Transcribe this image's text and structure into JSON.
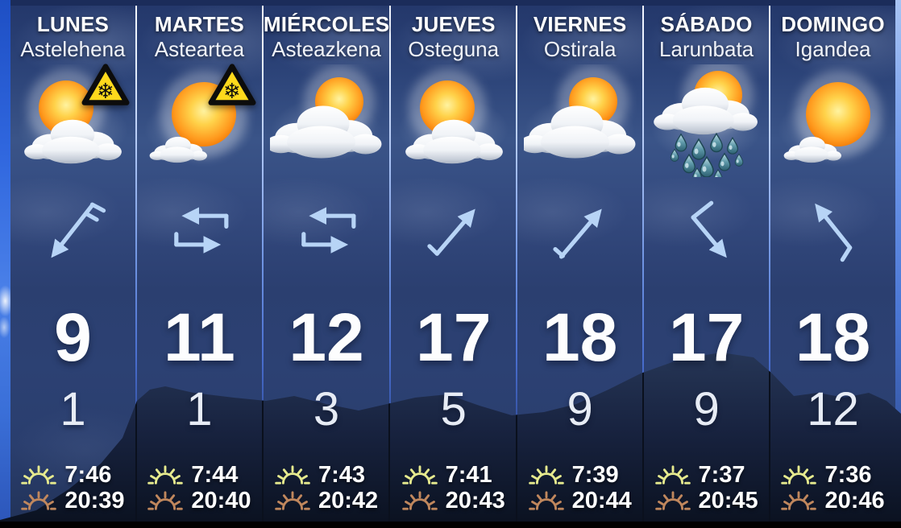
{
  "board": {
    "type_label": "7-day weather forecast",
    "languages": "Spanish / Basque"
  },
  "days": [
    {
      "day_name": "LUNES",
      "day_name_basque": "Astelehena",
      "weather_icon": "sun-behind-cloud",
      "snow_warning": true,
      "wind_icon": "wind-arrow-sw-barb",
      "temp_high": "9",
      "temp_low": "1",
      "sunrise": "7:46",
      "sunset": "20:39"
    },
    {
      "day_name": "MARTES",
      "day_name_basque": "Asteartea",
      "weather_icon": "sun-small-cloud",
      "snow_warning": true,
      "wind_icon": "wind-variable-loop",
      "temp_high": "11",
      "temp_low": "1",
      "sunrise": "7:44",
      "sunset": "20:40"
    },
    {
      "day_name": "MIÉRCOLES",
      "day_name_basque": "Asteazkena",
      "weather_icon": "cloud-sun-peek",
      "snow_warning": false,
      "wind_icon": "wind-variable-loop",
      "temp_high": "12",
      "temp_low": "3",
      "sunrise": "7:43",
      "sunset": "20:42"
    },
    {
      "day_name": "JUEVES",
      "day_name_basque": "Osteguna",
      "weather_icon": "sun-behind-cloud",
      "snow_warning": false,
      "wind_icon": "wind-arrow-ne-hook",
      "temp_high": "17",
      "temp_low": "5",
      "sunrise": "7:41",
      "sunset": "20:43"
    },
    {
      "day_name": "VIERNES",
      "day_name_basque": "Ostirala",
      "weather_icon": "cloud-sun-peek",
      "snow_warning": false,
      "wind_icon": "wind-arrow-ne-barb",
      "temp_high": "18",
      "temp_low": "9",
      "sunrise": "7:39",
      "sunset": "20:44"
    },
    {
      "day_name": "SÁBADO",
      "day_name_basque": "Larunbata",
      "weather_icon": "rain-cloud-sun",
      "snow_warning": false,
      "wind_icon": "wind-arrow-se-tail",
      "temp_high": "17",
      "temp_low": "9",
      "sunrise": "7:37",
      "sunset": "20:45"
    },
    {
      "day_name": "DOMINGO",
      "day_name_basque": "Igandea",
      "weather_icon": "sun-small-cloud",
      "snow_warning": false,
      "wind_icon": "wind-arrow-nw-tail",
      "temp_high": "18",
      "temp_low": "12",
      "sunrise": "7:36",
      "sunset": "20:46"
    }
  ],
  "colors": {
    "arrow_blue": "#b7d4f6",
    "panel_navy": "#2b3f70",
    "sky_blue": "#3a6fd8",
    "warning_yellow": "#ffd91c",
    "sunrise_icon": "#e6ea8e",
    "sunset_icon": "#c0875d",
    "temp_text": "#ffffff",
    "mountain_dark": "#101a2e"
  }
}
